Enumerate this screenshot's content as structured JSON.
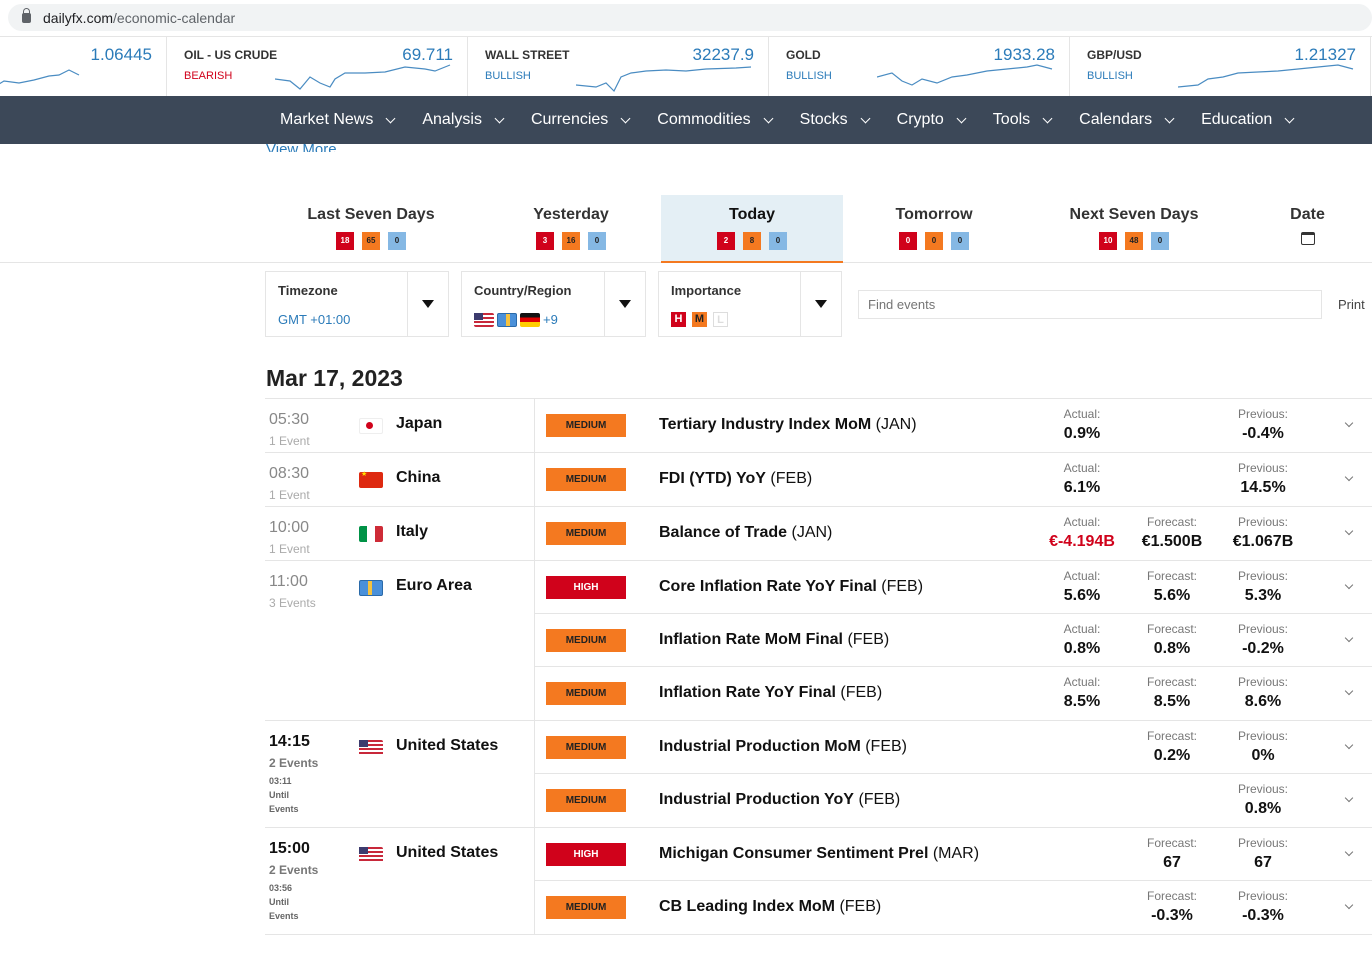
{
  "address": {
    "domain": "dailyfx.com",
    "path": "/economic-calendar"
  },
  "ticker": [
    {
      "name": "",
      "value": "1.06445",
      "sentiment": "",
      "color": "#2b7bb9"
    },
    {
      "name": "OIL - US CRUDE",
      "value": "69.711",
      "sentiment": "BEARISH",
      "color": "#d0021b"
    },
    {
      "name": "WALL STREET",
      "value": "32237.9",
      "sentiment": "BULLISH",
      "color": "#2b7bb9"
    },
    {
      "name": "GOLD",
      "value": "1933.28",
      "sentiment": "BULLISH",
      "color": "#2b7bb9"
    },
    {
      "name": "GBP/USD",
      "value": "1.21327",
      "sentiment": "BULLISH",
      "color": "#2b7bb9"
    }
  ],
  "nav": [
    "Market News",
    "Analysis",
    "Currencies",
    "Commodities",
    "Stocks",
    "Crypto",
    "Tools",
    "Calendars",
    "Education"
  ],
  "view_more": "View More",
  "date_tabs": [
    {
      "label": "Last Seven Days",
      "counts": [
        "18",
        "65",
        "0"
      ]
    },
    {
      "label": "Yesterday",
      "counts": [
        "3",
        "16",
        "0"
      ]
    },
    {
      "label": "Today",
      "counts": [
        "2",
        "8",
        "0"
      ],
      "active": true
    },
    {
      "label": "Tomorrow",
      "counts": [
        "0",
        "0",
        "0"
      ]
    },
    {
      "label": "Next Seven Days",
      "counts": [
        "10",
        "48",
        "0"
      ]
    },
    {
      "label": "Date",
      "calendar": true
    }
  ],
  "filters": {
    "timezone": {
      "label": "Timezone",
      "value": "GMT +01:00"
    },
    "country": {
      "label": "Country/Region",
      "more": "+9"
    },
    "importance": {
      "label": "Importance",
      "levels": [
        "H",
        "M",
        "L"
      ]
    }
  },
  "search": {
    "placeholder": "Find events"
  },
  "print": "Print",
  "date_heading": "Mar 17, 2023",
  "groups": [
    {
      "time": "05:30",
      "events_label": "1 Event",
      "flag": "jp",
      "country": "Japan",
      "events": [
        {
          "importance": "MEDIUM",
          "title": "Tertiary Industry Index MoM",
          "period": "(JAN)",
          "actual": "0.9%",
          "previous": "-0.4%"
        }
      ]
    },
    {
      "time": "08:30",
      "events_label": "1 Event",
      "flag": "cn",
      "country": "China",
      "events": [
        {
          "importance": "MEDIUM",
          "title": "FDI (YTD) YoY",
          "period": "(FEB)",
          "actual": "6.1%",
          "previous": "14.5%"
        }
      ]
    },
    {
      "time": "10:00",
      "events_label": "1 Event",
      "flag": "it",
      "country": "Italy",
      "events": [
        {
          "importance": "MEDIUM",
          "title": "Balance of Trade",
          "period": "(JAN)",
          "actual": "€-4.194B",
          "actual_negative": true,
          "forecast": "€1.500B",
          "previous": "€1.067B"
        }
      ]
    },
    {
      "time": "11:00",
      "events_label": "3 Events",
      "flag": "eu",
      "country": "Euro Area",
      "events": [
        {
          "importance": "HIGH",
          "title": "Core Inflation Rate YoY Final",
          "period": "(FEB)",
          "actual": "5.6%",
          "forecast": "5.6%",
          "previous": "5.3%"
        },
        {
          "importance": "MEDIUM",
          "title": "Inflation Rate MoM Final",
          "period": "(FEB)",
          "actual": "0.8%",
          "forecast": "0.8%",
          "previous": "-0.2%"
        },
        {
          "importance": "MEDIUM",
          "title": "Inflation Rate YoY Final",
          "period": "(FEB)",
          "actual": "8.5%",
          "forecast": "8.5%",
          "previous": "8.6%"
        }
      ]
    },
    {
      "time": "14:15",
      "events_label": "2 Events",
      "upcoming": true,
      "countdown": "03:11",
      "until": "Until",
      "until2": "Events",
      "flag": "us",
      "country": "United States",
      "events": [
        {
          "importance": "MEDIUM",
          "title": "Industrial Production MoM",
          "period": "(FEB)",
          "forecast": "0.2%",
          "previous": "0%"
        },
        {
          "importance": "MEDIUM",
          "title": "Industrial Production YoY",
          "period": "(FEB)",
          "previous": "0.8%"
        }
      ]
    },
    {
      "time": "15:00",
      "events_label": "2 Events",
      "upcoming": true,
      "countdown": "03:56",
      "until": "Until",
      "until2": "Events",
      "flag": "us",
      "country": "United States",
      "events": [
        {
          "importance": "HIGH",
          "title": "Michigan Consumer Sentiment Prel",
          "period": "(MAR)",
          "forecast": "67",
          "previous": "67"
        },
        {
          "importance": "MEDIUM",
          "title": "CB Leading Index MoM",
          "period": "(FEB)",
          "forecast": "-0.3%",
          "previous": "-0.3%"
        }
      ]
    }
  ],
  "labels": {
    "actual": "Actual:",
    "forecast": "Forecast:",
    "previous": "Previous:"
  }
}
